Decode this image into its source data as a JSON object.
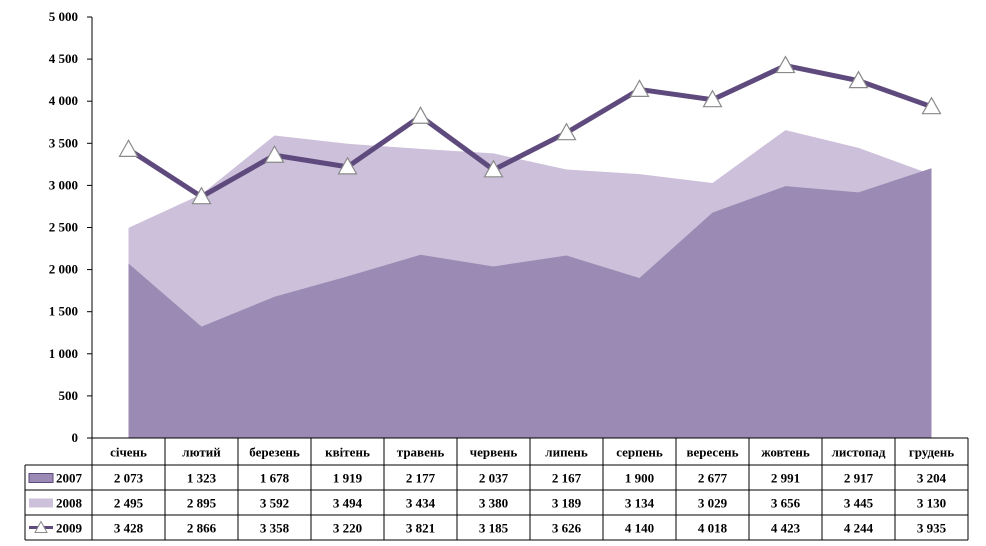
{
  "chart_data": {
    "type": "area",
    "categories": [
      "січень",
      "лютий",
      "березень",
      "квітень",
      "травень",
      "червень",
      "липень",
      "серпень",
      "вересень",
      "жовтень",
      "листопад",
      "грудень"
    ],
    "ylim": [
      0,
      5000
    ],
    "yticks": [
      0,
      500,
      1000,
      1500,
      2000,
      2500,
      3000,
      3500,
      4000,
      4500,
      5000
    ],
    "ytick_labels": [
      "0",
      "500",
      "1 000",
      "1 500",
      "2 000",
      "2 500",
      "3 000",
      "3 500",
      "4 000",
      "4 500",
      "5 000"
    ],
    "legend_placement": "data-table-left",
    "grid": false,
    "series": [
      {
        "name": "2007",
        "style": "area",
        "color": "#9b8ab3",
        "values": [
          2073,
          1323,
          1678,
          1919,
          2177,
          2037,
          2167,
          1900,
          2677,
          2991,
          2917,
          3204
        ],
        "value_labels": [
          "2 073",
          "1 323",
          "1 678",
          "1 919",
          "2 177",
          "2 037",
          "2 167",
          "1 900",
          "2 677",
          "2 991",
          "2 917",
          "3 204"
        ]
      },
      {
        "name": "2008",
        "style": "area",
        "color": "#ccc0da",
        "values": [
          2495,
          2895,
          3592,
          3494,
          3434,
          3380,
          3189,
          3134,
          3029,
          3656,
          3445,
          3130
        ],
        "value_labels": [
          "2 495",
          "2 895",
          "3 592",
          "3 494",
          "3 434",
          "3 380",
          "3 189",
          "3 134",
          "3 029",
          "3 656",
          "3 445",
          "3 130"
        ]
      },
      {
        "name": "2009",
        "style": "line",
        "color": "#5f4a7e",
        "marker": "triangle",
        "values": [
          3428,
          2866,
          3358,
          3220,
          3821,
          3185,
          3626,
          4140,
          4018,
          4423,
          4244,
          3935
        ],
        "value_labels": [
          "3 428",
          "2 866",
          "3 358",
          "3 220",
          "3 821",
          "3 185",
          "3 626",
          "4 140",
          "4 018",
          "4 423",
          "4 244",
          "3 935"
        ]
      }
    ]
  }
}
